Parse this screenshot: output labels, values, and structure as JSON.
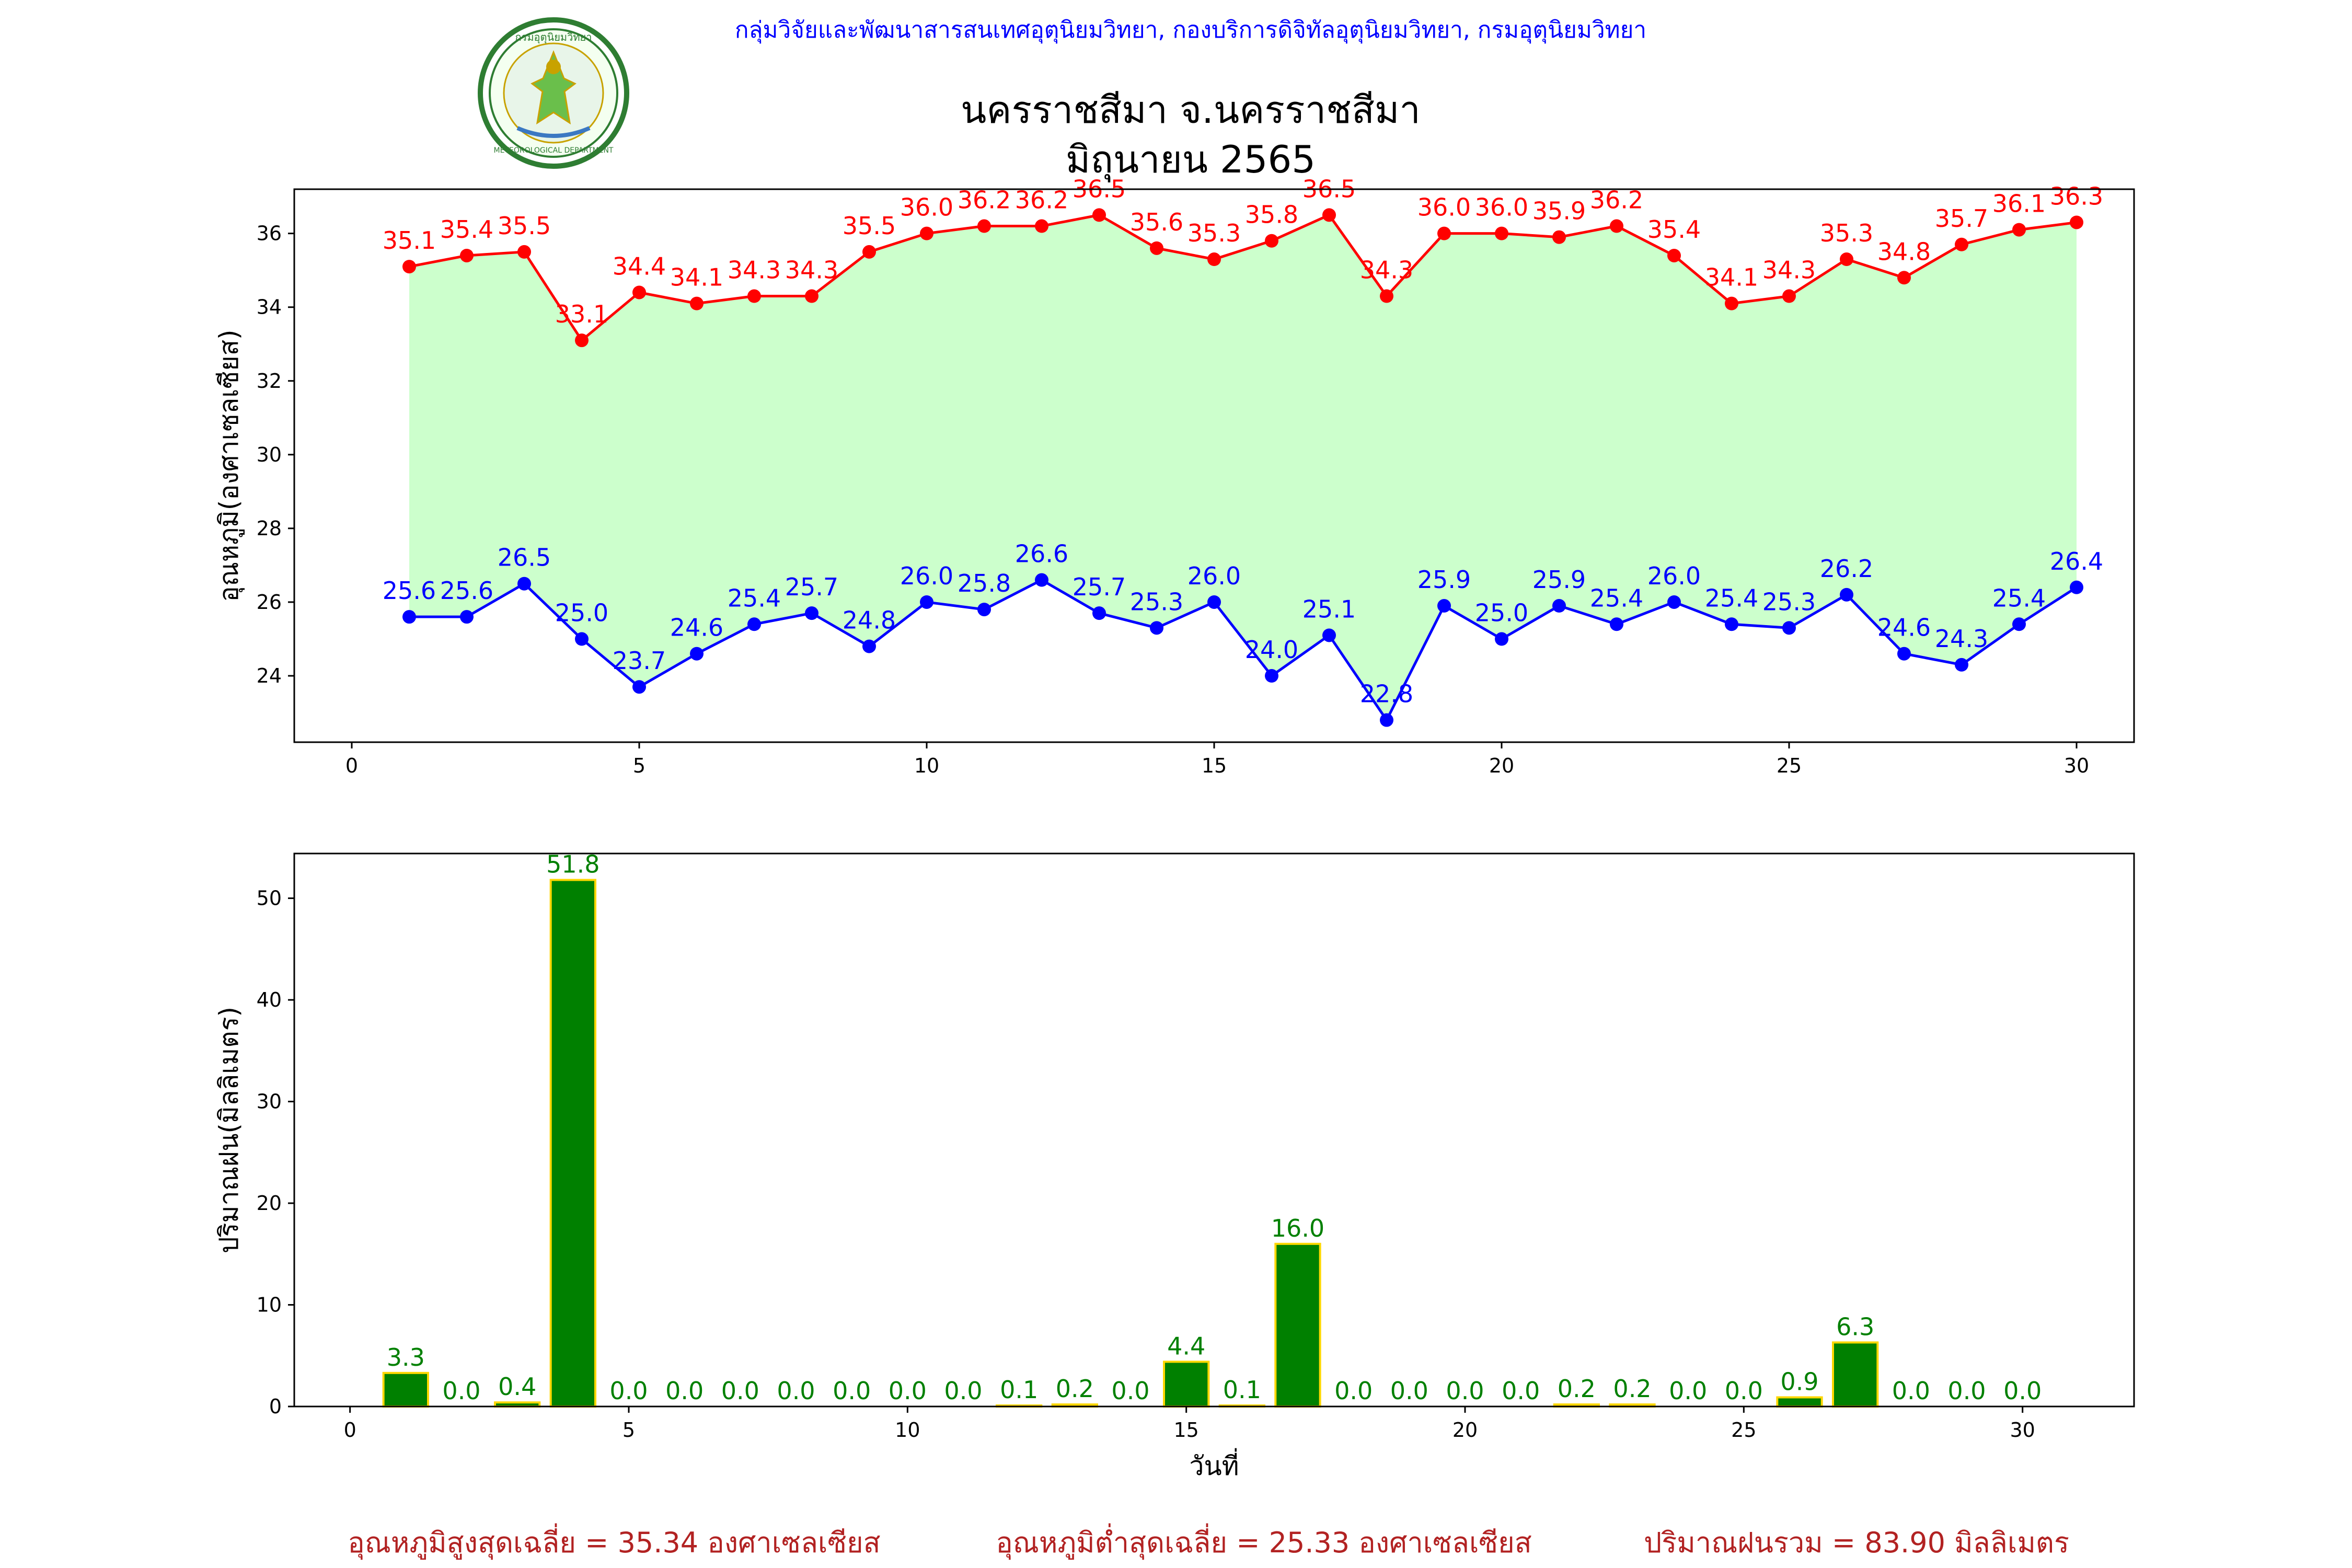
{
  "header": {
    "org_line": "กลุ่มวิจัยและพัฒนาสารสนเทศอุตุนิยมวิทยา, กองบริการดิจิทัลอุตุนิยมวิทยา, กรมอุตุนิยมวิทยา",
    "title_line1": "นครราชสีมา จ.นครราชสีมา",
    "title_line2": "มิถุนายน 2565",
    "logo": {
      "name": "meteorological-department-seal",
      "text_top": "กรมอุตุนิยมวิทยา",
      "text_bottom": "METEOROLOGICAL DEPARTMENT"
    }
  },
  "colors": {
    "max_line": "#ff0000",
    "min_line": "#0000ff",
    "fill_between": "#ccffcc",
    "bar_fill": "#008000",
    "bar_edge": "#ffd700",
    "rain_label": "#008000",
    "summary_text": "#b22222",
    "org_text": "#0000ff"
  },
  "chart_data": [
    {
      "type": "line",
      "ylabel": "อุณหภูมิ(องศาเซลเซียส)",
      "xlabel": "",
      "xlim": [
        -1,
        31
      ],
      "ylim": [
        22.2,
        37.2
      ],
      "xticks": [
        0,
        5,
        10,
        15,
        20,
        25,
        30
      ],
      "yticks": [
        24,
        26,
        28,
        30,
        32,
        34,
        36
      ],
      "fill_between": true,
      "grid": false,
      "x": [
        1,
        2,
        3,
        4,
        5,
        6,
        7,
        8,
        9,
        10,
        11,
        12,
        13,
        14,
        15,
        16,
        17,
        18,
        19,
        20,
        21,
        22,
        23,
        24,
        25,
        26,
        27,
        28,
        29,
        30
      ],
      "series": [
        {
          "key": "max",
          "values": [
            35.1,
            35.4,
            35.5,
            33.1,
            34.4,
            34.1,
            34.3,
            34.3,
            35.5,
            36.0,
            36.2,
            36.2,
            36.5,
            35.6,
            35.3,
            35.8,
            36.5,
            34.3,
            36.0,
            36.0,
            35.9,
            36.2,
            35.4,
            34.1,
            34.3,
            35.3,
            34.8,
            35.7,
            36.1,
            36.3
          ]
        },
        {
          "key": "min",
          "values": [
            25.6,
            25.6,
            26.5,
            25.0,
            23.7,
            24.6,
            25.4,
            25.7,
            24.8,
            26.0,
            25.8,
            26.6,
            25.7,
            25.3,
            26.0,
            24.0,
            25.1,
            22.8,
            25.9,
            25.0,
            25.9,
            25.4,
            26.0,
            25.4,
            25.3,
            26.2,
            24.6,
            24.3,
            25.4,
            26.4
          ]
        }
      ]
    },
    {
      "type": "bar",
      "ylabel": "ปริมาณฝน(มิลลิเมตร)",
      "xlabel": "วันที่",
      "xlim": [
        -1,
        32
      ],
      "ylim": [
        0,
        54.4
      ],
      "xticks": [
        0,
        5,
        10,
        15,
        20,
        25,
        30
      ],
      "yticks": [
        0,
        10,
        20,
        30,
        40,
        50
      ],
      "grid": false,
      "x": [
        1,
        2,
        3,
        4,
        5,
        6,
        7,
        8,
        9,
        10,
        11,
        12,
        13,
        14,
        15,
        16,
        17,
        18,
        19,
        20,
        21,
        22,
        23,
        24,
        25,
        26,
        27,
        28,
        29,
        30
      ],
      "values": [
        3.3,
        0.0,
        0.4,
        51.8,
        0.0,
        0.0,
        0.0,
        0.0,
        0.0,
        0.0,
        0.0,
        0.1,
        0.2,
        0.0,
        4.4,
        0.1,
        16.0,
        0.0,
        0.0,
        0.0,
        0.0,
        0.2,
        0.2,
        0.0,
        0.0,
        0.9,
        6.3,
        0.0,
        0.0,
        0.0
      ]
    }
  ],
  "summary": {
    "avg_max": "อุณหภูมิสูงสุดเฉลี่ย = 35.34 องศาเซลเซียส",
    "avg_min": "อุณหภูมิต่ำสุดเฉลี่ย = 25.33 องศาเซลเซียส",
    "total_rain": "ปริมาณฝนรวม = 83.90 มิลลิเมตร"
  }
}
